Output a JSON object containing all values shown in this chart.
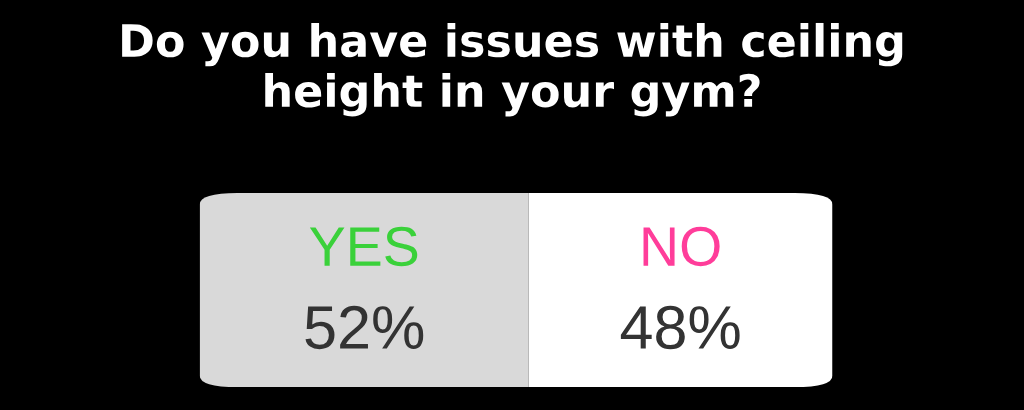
{
  "chart_data": {
    "type": "bar",
    "orientation": "horizontal",
    "stacked": true,
    "title": "Do you have issues with ceiling\nheight in your gym?",
    "categories": [
      null
    ],
    "series": [
      {
        "name": "YES",
        "color": "#d9d9d9",
        "values": [
          52
        ],
        "value_labels": [
          "52%"
        ]
      },
      {
        "name": "NO",
        "color": "#ffffff",
        "values": [
          48
        ],
        "value_labels": [
          "48%"
        ]
      }
    ]
  }
}
